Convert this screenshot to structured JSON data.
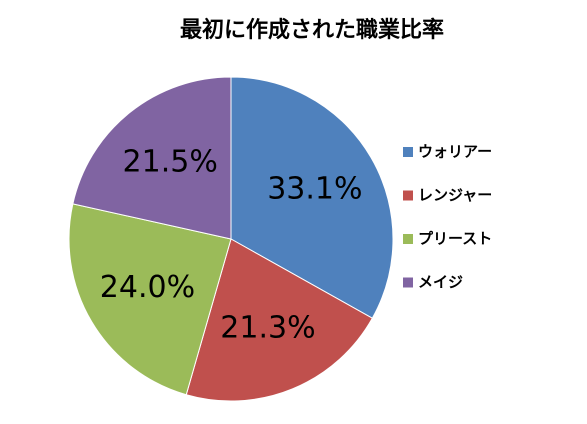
{
  "chart_data": {
    "type": "pie",
    "title": "最初に作成された職業比率",
    "categories": [
      "ウォリアー",
      "レンジャー",
      "プリースト",
      "メイジ"
    ],
    "values": [
      33.1,
      21.3,
      24.0,
      21.5
    ],
    "value_labels": [
      "33.1%",
      "21.3%",
      "24.0%",
      "21.5%"
    ],
    "colors": [
      "#4f81bd",
      "#c0504d",
      "#9bbb59",
      "#8064a2"
    ],
    "legend": "right"
  }
}
